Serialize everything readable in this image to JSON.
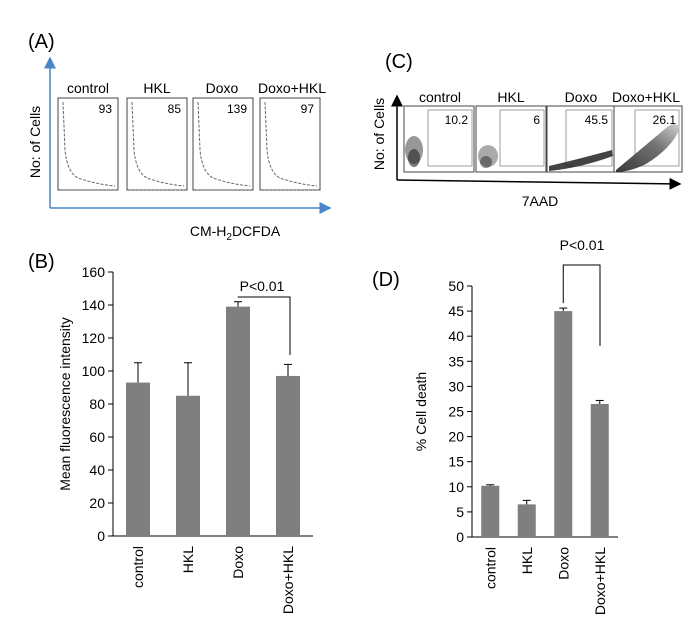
{
  "panel_labels": {
    "A": "(A)",
    "B": "(B)",
    "C": "(C)",
    "D": "(D)"
  },
  "panel_a": {
    "ylabel": "No: of Cells",
    "xlabel_prefix": "CM-H",
    "xlabel_subscript": "2",
    "xlabel_suffix": "DCFDA",
    "histograms": [
      {
        "label": "control",
        "value": "93"
      },
      {
        "label": "HKL",
        "value": "85"
      },
      {
        "label": "Doxo",
        "value": "139"
      },
      {
        "label": "Doxo+HKL",
        "value": "97"
      }
    ]
  },
  "panel_c": {
    "ylabel": "No: of Cells",
    "xlabel": "7AAD",
    "plots": [
      {
        "label": "control",
        "value": "10.2"
      },
      {
        "label": "HKL",
        "value": "6"
      },
      {
        "label": "Doxo",
        "value": "45.5"
      },
      {
        "label": "Doxo+HKL",
        "value": "26.1"
      }
    ]
  },
  "colors": {
    "bar": "#7f7f7f",
    "axis": "#000000",
    "arrow": "#4a86c8"
  },
  "chart_data": [
    {
      "id": "B",
      "type": "bar",
      "categories": [
        "control",
        "HKL",
        "Doxo",
        "Doxo+HKL"
      ],
      "values": [
        93,
        85,
        139,
        97
      ],
      "errors": [
        12,
        20,
        3,
        7
      ],
      "ylabel": "Mean fluorescence intensity",
      "xlabel": "",
      "ylim": [
        0,
        160
      ],
      "yticks": [
        0,
        20,
        40,
        60,
        80,
        100,
        120,
        140,
        160
      ],
      "annotation": {
        "text": "P<0.01",
        "between": [
          2,
          3
        ]
      }
    },
    {
      "id": "D",
      "type": "bar",
      "categories": [
        "control",
        "HKL",
        "Doxo",
        "Doxo+HKL"
      ],
      "values": [
        10.2,
        6.5,
        45,
        26.5
      ],
      "errors": [
        0.2,
        0.8,
        0.6,
        0.7
      ],
      "ylabel": "% Cell death",
      "xlabel": "",
      "ylim": [
        0,
        50
      ],
      "yticks": [
        0,
        5,
        10,
        15,
        20,
        25,
        30,
        35,
        40,
        45,
        50
      ],
      "annotation": {
        "text": "P<0.01",
        "between": [
          2,
          3
        ]
      }
    }
  ]
}
